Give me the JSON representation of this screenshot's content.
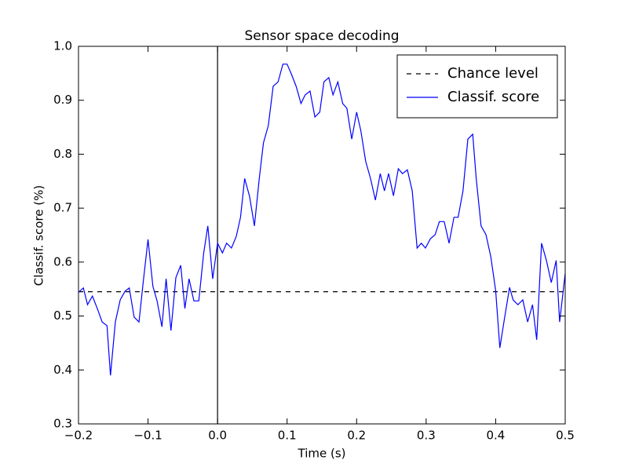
{
  "chart_data": {
    "type": "line",
    "title": "Sensor space decoding",
    "xlabel": "Time (s)",
    "ylabel": "Classif. score (%)",
    "x": [
      -0.2,
      -0.193,
      -0.187,
      -0.18,
      -0.173,
      -0.166,
      -0.159,
      -0.154,
      -0.147,
      -0.14,
      -0.133,
      -0.127,
      -0.12,
      -0.113,
      -0.107,
      -0.1,
      -0.093,
      -0.087,
      -0.08,
      -0.074,
      -0.067,
      -0.06,
      -0.053,
      -0.047,
      -0.041,
      -0.034,
      -0.027,
      -0.02,
      -0.014,
      -0.007,
      0.0,
      0.007,
      0.013,
      0.02,
      0.027,
      0.033,
      0.039,
      0.046,
      0.053,
      0.06,
      0.066,
      0.073,
      0.08,
      0.087,
      0.094,
      0.1,
      0.106,
      0.113,
      0.12,
      0.126,
      0.133,
      0.14,
      0.147,
      0.153,
      0.16,
      0.166,
      0.173,
      0.18,
      0.186,
      0.193,
      0.2,
      0.206,
      0.213,
      0.22,
      0.227,
      0.234,
      0.24,
      0.246,
      0.253,
      0.26,
      0.266,
      0.273,
      0.28,
      0.287,
      0.293,
      0.299,
      0.306,
      0.313,
      0.319,
      0.326,
      0.333,
      0.34,
      0.346,
      0.353,
      0.36,
      0.367,
      0.372,
      0.379,
      0.386,
      0.393,
      0.4,
      0.406,
      0.413,
      0.42,
      0.425,
      0.432,
      0.439,
      0.446,
      0.453,
      0.459,
      0.466,
      0.473,
      0.48,
      0.487,
      0.492,
      0.5
    ],
    "series": [
      {
        "name": "Classif. score",
        "color": "#0000ff",
        "values": [
          0.544,
          0.552,
          0.521,
          0.537,
          0.514,
          0.489,
          0.482,
          0.39,
          0.489,
          0.53,
          0.546,
          0.552,
          0.498,
          0.489,
          0.562,
          0.642,
          0.555,
          0.528,
          0.48,
          0.569,
          0.473,
          0.571,
          0.594,
          0.514,
          0.569,
          0.528,
          0.528,
          0.616,
          0.667,
          0.569,
          0.635,
          0.617,
          0.635,
          0.626,
          0.648,
          0.683,
          0.755,
          0.722,
          0.667,
          0.755,
          0.821,
          0.853,
          0.926,
          0.934,
          0.967,
          0.967,
          0.949,
          0.926,
          0.894,
          0.91,
          0.917,
          0.869,
          0.878,
          0.934,
          0.942,
          0.91,
          0.934,
          0.894,
          0.885,
          0.828,
          0.878,
          0.844,
          0.787,
          0.755,
          0.715,
          0.764,
          0.732,
          0.764,
          0.723,
          0.773,
          0.764,
          0.771,
          0.732,
          0.626,
          0.635,
          0.626,
          0.643,
          0.651,
          0.675,
          0.675,
          0.635,
          0.683,
          0.683,
          0.732,
          0.828,
          0.837,
          0.755,
          0.667,
          0.651,
          0.61,
          0.547,
          0.441,
          0.498,
          0.553,
          0.53,
          0.521,
          0.53,
          0.489,
          0.521,
          0.456,
          0.635,
          0.603,
          0.562,
          0.603,
          0.489,
          0.579
        ]
      }
    ],
    "hlines": [
      {
        "name": "Chance level",
        "value": 0.545,
        "color": "#000000",
        "dashed": true
      }
    ],
    "vline": 0.0,
    "xlim": [
      -0.2,
      0.5
    ],
    "ylim": [
      0.3,
      1.0
    ],
    "xticks": [
      {
        "value": -0.2,
        "label": "−0.2"
      },
      {
        "value": -0.1,
        "label": "−0.1"
      },
      {
        "value": 0.0,
        "label": "0.0"
      },
      0.1,
      0.2,
      0.3,
      0.4,
      0.5
    ],
    "yticks": [
      0.3,
      0.4,
      0.5,
      0.6,
      0.7,
      0.8,
      0.9,
      {
        "value": 1.0,
        "label": "1.0"
      }
    ],
    "legend": "upper right"
  }
}
